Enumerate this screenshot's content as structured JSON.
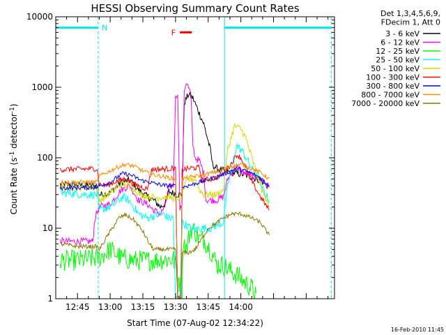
{
  "chart_data": {
    "type": "line",
    "title": "HESSI Observing Summary Count Rates",
    "xlabel": "Start Time (07-Aug-02 12:34:22)",
    "ylabel_prefix": "Count Rate (s",
    "ylabel_sup1": "-1",
    "ylabel_mid": " detector",
    "ylabel_sup2": "-1",
    "ylabel_suffix": ")",
    "yscale": "log",
    "ylim": [
      1,
      10000
    ],
    "xlim": [
      755,
      883
    ],
    "x_ticks": [
      {
        "v": 765,
        "label": "12:45"
      },
      {
        "v": 780,
        "label": "13:00"
      },
      {
        "v": 795,
        "label": "13:15"
      },
      {
        "v": 810,
        "label": "13:30"
      },
      {
        "v": 825,
        "label": "13:45"
      },
      {
        "v": 840,
        "label": "14:00"
      }
    ],
    "y_ticks": [
      {
        "v": 1,
        "label": "1"
      },
      {
        "v": 10,
        "label": "10"
      },
      {
        "v": 100,
        "label": "100"
      },
      {
        "v": 1000,
        "label": "1000"
      },
      {
        "v": 10000,
        "label": "10000"
      }
    ],
    "legend_header": [
      "Det 1,3,4,5,6,9,",
      "FDecim 1, Att 0"
    ],
    "timestamp": "16-Feb-2010 11:45",
    "night": {
      "color": "#00e5ee",
      "label": "N",
      "level": 7000,
      "intervals": [
        [
          755,
          774.5
        ],
        [
          832.5,
          881.5
        ]
      ],
      "edges": [
        755,
        774.5,
        832.5,
        881.5
      ]
    },
    "flare": {
      "color": "#ff0000",
      "label": "F",
      "x": [
        812,
        817.5
      ],
      "level": 6000
    },
    "series": [
      {
        "name": "3 - 6 keV",
        "color": "#000000",
        "noise": 0.05,
        "points": [
          [
            757,
            42
          ],
          [
            774,
            40
          ],
          [
            775,
            30
          ],
          [
            776,
            30
          ],
          [
            780,
            32
          ],
          [
            785,
            45
          ],
          [
            789,
            48
          ],
          [
            793,
            35
          ],
          [
            797,
            28
          ],
          [
            800,
            25
          ],
          [
            803,
            20
          ],
          [
            805,
            22
          ],
          [
            807,
            33
          ],
          [
            811,
            30
          ],
          [
            813,
            30
          ],
          [
            814,
            600
          ],
          [
            816,
            800
          ],
          [
            818,
            700
          ],
          [
            820,
            500
          ],
          [
            823,
            300
          ],
          [
            826,
            130
          ],
          [
            827,
            80
          ],
          [
            829,
            70
          ],
          [
            832,
            65
          ],
          [
            835,
            62
          ],
          [
            838,
            60
          ],
          [
            841,
            58
          ],
          [
            845,
            53
          ],
          [
            849,
            48
          ],
          [
            853,
            38
          ]
        ]
      },
      {
        "name": "6 - 12 keV",
        "color": "#ff00ff",
        "noise": 0.05,
        "points": [
          [
            757,
            6.5
          ],
          [
            772,
            6.5
          ],
          [
            773,
            14
          ],
          [
            775,
            20
          ],
          [
            780,
            22
          ],
          [
            785,
            35
          ],
          [
            789,
            40
          ],
          [
            793,
            25
          ],
          [
            797,
            22
          ],
          [
            800,
            18
          ],
          [
            803,
            16
          ],
          [
            805,
            20
          ],
          [
            807,
            38
          ],
          [
            809,
            40
          ],
          [
            810,
            700
          ],
          [
            811,
            850
          ],
          [
            812,
            20
          ],
          [
            813,
            20
          ],
          [
            814,
            900
          ],
          [
            815,
            1200
          ],
          [
            817,
            800
          ],
          [
            818,
            150
          ],
          [
            819,
            100
          ],
          [
            821,
            90
          ],
          [
            823,
            60
          ],
          [
            824,
            25
          ],
          [
            826,
            25
          ],
          [
            829,
            25
          ],
          [
            832,
            28
          ],
          [
            834,
            50
          ],
          [
            838,
            75
          ],
          [
            841,
            62
          ],
          [
            845,
            55
          ],
          [
            849,
            50
          ],
          [
            853,
            38
          ]
        ]
      },
      {
        "name": "12 - 25 keV",
        "color": "#00ff00",
        "noise": 0.15,
        "points": [
          [
            757,
            3.5
          ],
          [
            765,
            3.5
          ],
          [
            775,
            3.8
          ],
          [
            780,
            5
          ],
          [
            785,
            3.8
          ],
          [
            790,
            3.5
          ],
          [
            800,
            3.5
          ],
          [
            805,
            3.6
          ],
          [
            809,
            3.6
          ],
          [
            810,
            3
          ],
          [
            811,
            2.3
          ],
          [
            812,
            1.5
          ],
          [
            813,
            1
          ],
          [
            813.5,
            7
          ],
          [
            815,
            5
          ],
          [
            817,
            10
          ],
          [
            819,
            9
          ],
          [
            821,
            7
          ],
          [
            823,
            7
          ],
          [
            826,
            5
          ],
          [
            829,
            3
          ],
          [
            832,
            3
          ],
          [
            835,
            2.5
          ],
          [
            838,
            2.2
          ],
          [
            841,
            1.8
          ],
          [
            845,
            1.4
          ],
          [
            847,
            1.2
          ]
        ]
      },
      {
        "name": "25 - 50 keV",
        "color": "#00ffff",
        "noise": 0.06,
        "points": [
          [
            757,
            32
          ],
          [
            770,
            30
          ],
          [
            774,
            30
          ],
          [
            775,
            18
          ],
          [
            780,
            20
          ],
          [
            784,
            25
          ],
          [
            786,
            28
          ],
          [
            789,
            24
          ],
          [
            793,
            16
          ],
          [
            797,
            14
          ],
          [
            800,
            15
          ],
          [
            804,
            16
          ],
          [
            807,
            14
          ],
          [
            809,
            14
          ],
          [
            810,
            1
          ],
          [
            812,
            1
          ],
          [
            813,
            12
          ],
          [
            815,
            11
          ],
          [
            817,
            10
          ],
          [
            819,
            9.5
          ],
          [
            821,
            10
          ],
          [
            823,
            10
          ],
          [
            826,
            10
          ],
          [
            829,
            11
          ],
          [
            832,
            12
          ],
          [
            834,
            40
          ],
          [
            838,
            150
          ],
          [
            841,
            120
          ],
          [
            845,
            70
          ],
          [
            848,
            55
          ],
          [
            849,
            40
          ],
          [
            853,
            25
          ]
        ]
      },
      {
        "name": "50 - 100 keV",
        "color": "#d6d600",
        "noise": 0.05,
        "points": [
          [
            757,
            38
          ],
          [
            774,
            38
          ],
          [
            775,
            25
          ],
          [
            778,
            28
          ],
          [
            784,
            40
          ],
          [
            786,
            42
          ],
          [
            790,
            38
          ],
          [
            794,
            30
          ],
          [
            798,
            28
          ],
          [
            802,
            27
          ],
          [
            806,
            28
          ],
          [
            810,
            26
          ],
          [
            812,
            27
          ],
          [
            815,
            45
          ],
          [
            817,
            50
          ],
          [
            819,
            50
          ],
          [
            821,
            35
          ],
          [
            823,
            30
          ],
          [
            826,
            30
          ],
          [
            829,
            30
          ],
          [
            832,
            35
          ],
          [
            834,
            130
          ],
          [
            837,
            280
          ],
          [
            840,
            260
          ],
          [
            842,
            200
          ],
          [
            845,
            100
          ],
          [
            849,
            40
          ],
          [
            853,
            20
          ]
        ]
      },
      {
        "name": "100 - 300 keV",
        "color": "#ff0000",
        "noise": 0.04,
        "points": [
          [
            757,
            68
          ],
          [
            774,
            70
          ],
          [
            775,
            42
          ],
          [
            778,
            40
          ],
          [
            784,
            48
          ],
          [
            787,
            50
          ],
          [
            791,
            42
          ],
          [
            795,
            38
          ],
          [
            797,
            36
          ],
          [
            799,
            68
          ],
          [
            808,
            70
          ],
          [
            810,
            72
          ],
          [
            811,
            1
          ],
          [
            812.5,
            1
          ],
          [
            813,
            68
          ],
          [
            816,
            70
          ],
          [
            818,
            72
          ],
          [
            821,
            72
          ],
          [
            822,
            48
          ],
          [
            826,
            50
          ],
          [
            829,
            52
          ],
          [
            832,
            60
          ],
          [
            836,
            85
          ],
          [
            838,
            110
          ],
          [
            840,
            100
          ],
          [
            843,
            65
          ],
          [
            846,
            40
          ],
          [
            849,
            28
          ],
          [
            853,
            18
          ]
        ]
      },
      {
        "name": "300 - 800 keV",
        "color": "#0000ff",
        "noise": 0.03,
        "points": [
          [
            757,
            37
          ],
          [
            774,
            38
          ],
          [
            775,
            40
          ],
          [
            780,
            45
          ],
          [
            784,
            55
          ],
          [
            786,
            60
          ],
          [
            790,
            56
          ],
          [
            794,
            48
          ],
          [
            798,
            45
          ],
          [
            802,
            42
          ],
          [
            806,
            40
          ],
          [
            810,
            40
          ],
          [
            811,
            1
          ],
          [
            812.5,
            1
          ],
          [
            813,
            38
          ],
          [
            818,
            42
          ],
          [
            824,
            48
          ],
          [
            830,
            55
          ],
          [
            834,
            62
          ],
          [
            838,
            70
          ],
          [
            840,
            68
          ],
          [
            844,
            62
          ],
          [
            849,
            52
          ],
          [
            853,
            40
          ]
        ]
      },
      {
        "name": "800 - 7000 keV",
        "color": "#ff8c00",
        "noise": 0.03,
        "points": [
          [
            757,
            45
          ],
          [
            774,
            45
          ],
          [
            775,
            55
          ],
          [
            780,
            65
          ],
          [
            784,
            75
          ],
          [
            787,
            80
          ],
          [
            791,
            76
          ],
          [
            795,
            65
          ],
          [
            799,
            58
          ],
          [
            803,
            55
          ],
          [
            807,
            52
          ],
          [
            810,
            50
          ],
          [
            811,
            1
          ],
          [
            812.5,
            1
          ],
          [
            813,
            50
          ],
          [
            818,
            54
          ],
          [
            824,
            58
          ],
          [
            830,
            65
          ],
          [
            835,
            75
          ],
          [
            840,
            80
          ],
          [
            845,
            70
          ],
          [
            849,
            62
          ],
          [
            853,
            50
          ]
        ]
      },
      {
        "name": "7000 - 20000 keV",
        "color": "#8b7500",
        "noise": 0.03,
        "points": [
          [
            757,
            6
          ],
          [
            765,
            5.5
          ],
          [
            774,
            5.5
          ],
          [
            775,
            5
          ],
          [
            780,
            9
          ],
          [
            784,
            14
          ],
          [
            787,
            15.5
          ],
          [
            791,
            13
          ],
          [
            795,
            9
          ],
          [
            798,
            6
          ],
          [
            800,
            5
          ],
          [
            805,
            5
          ],
          [
            810,
            5
          ],
          [
            811,
            1
          ],
          [
            812.5,
            1
          ],
          [
            813,
            4.5
          ],
          [
            816,
            4.5
          ],
          [
            819,
            5
          ],
          [
            822,
            7
          ],
          [
            825,
            10
          ],
          [
            829,
            12
          ],
          [
            832,
            14
          ],
          [
            836,
            16
          ],
          [
            840,
            16
          ],
          [
            845,
            14
          ],
          [
            849,
            12
          ],
          [
            853,
            8
          ]
        ]
      }
    ]
  }
}
